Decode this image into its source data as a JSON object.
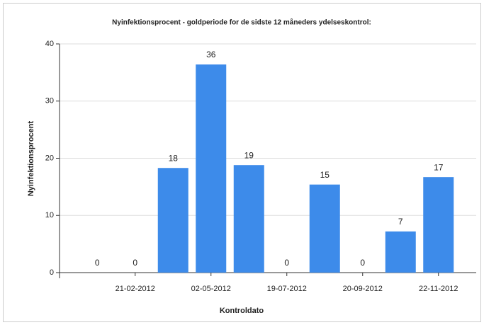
{
  "chart_data": {
    "type": "bar",
    "title": "Nyinfektionsprocent - goldperiode for de sidste 12 måneders ydelseskontrol:",
    "x_label": "Kontroldato",
    "y_label": "Nyinfektionsprocent",
    "categories": [
      null,
      "21-02-2012",
      null,
      "02-05-2012",
      null,
      "19-07-2012",
      null,
      "20-09-2012",
      null,
      "22-11-2012"
    ],
    "values": [
      0,
      0,
      18.3,
      36.4,
      18.8,
      0,
      15.4,
      0,
      7.2,
      16.7
    ],
    "value_labels": [
      "0",
      "0",
      "18",
      "36",
      "19",
      "0",
      "15",
      "0",
      "7",
      "17"
    ],
    "color": "#3d8bea",
    "ylim": [
      0,
      40
    ],
    "yticks": [
      0,
      10,
      20,
      30,
      40
    ],
    "grid": true
  }
}
